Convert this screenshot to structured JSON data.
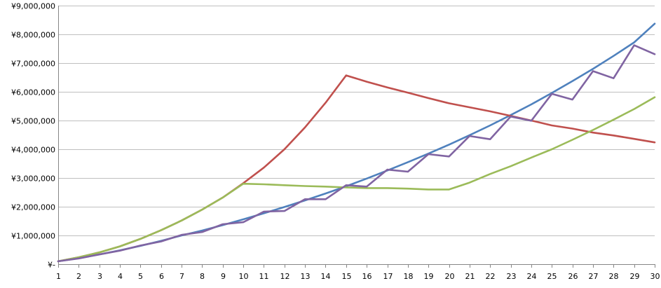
{
  "chart_data": {
    "type": "line",
    "title": "",
    "xlabel": "",
    "ylabel": "",
    "grid": true,
    "legend": "none",
    "ylim": [
      0,
      9000000
    ],
    "y_ticks": [
      {
        "value": 0,
        "label": "¥-"
      },
      {
        "value": 1000000,
        "label": "¥1,000,000"
      },
      {
        "value": 2000000,
        "label": "¥2,000,000"
      },
      {
        "value": 3000000,
        "label": "¥3,000,000"
      },
      {
        "value": 4000000,
        "label": "¥4,000,000"
      },
      {
        "value": 5000000,
        "label": "¥5,000,000"
      },
      {
        "value": 6000000,
        "label": "¥6,000,000"
      },
      {
        "value": 7000000,
        "label": "¥7,000,000"
      },
      {
        "value": 8000000,
        "label": "¥8,000,000"
      },
      {
        "value": 9000000,
        "label": "¥9,000,000"
      }
    ],
    "x": [
      "1",
      "2",
      "3",
      "4",
      "5",
      "6",
      "7",
      "8",
      "9",
      "10",
      "11",
      "12",
      "13",
      "14",
      "15",
      "16",
      "17",
      "18",
      "19",
      "20",
      "21",
      "22",
      "23",
      "24",
      "25",
      "26",
      "27",
      "28",
      "29",
      "30"
    ],
    "series": [
      {
        "color": "#4f81bd",
        "values": [
          100000,
          210000,
          340000,
          480000,
          640000,
          810000,
          1000000,
          1170000,
          1360000,
          1560000,
          1770000,
          1990000,
          2220000,
          2460000,
          2710000,
          2980000,
          3260000,
          3550000,
          3850000,
          4160000,
          4490000,
          4830000,
          5190000,
          5560000,
          5960000,
          6370000,
          6800000,
          7250000,
          7720000,
          8370000
        ]
      },
      {
        "color": "#c0504d",
        "values": [
          100000,
          240000,
          410000,
          620000,
          880000,
          1180000,
          1520000,
          1900000,
          2320000,
          2820000,
          3360000,
          4000000,
          4760000,
          5620000,
          6570000,
          6350000,
          6150000,
          5970000,
          5780000,
          5600000,
          5460000,
          5320000,
          5160000,
          5000000,
          4830000,
          4720000,
          4580000,
          4480000,
          4360000,
          4240000
        ]
      },
      {
        "color": "#9bbb59",
        "values": [
          100000,
          240000,
          410000,
          620000,
          880000,
          1180000,
          1520000,
          1900000,
          2320000,
          2800000,
          2780000,
          2750000,
          2720000,
          2700000,
          2670000,
          2650000,
          2650000,
          2630000,
          2600000,
          2600000,
          2840000,
          3140000,
          3410000,
          3710000,
          4000000,
          4330000,
          4670000,
          5030000,
          5400000,
          5810000
        ]
      },
      {
        "color": "#8064a2",
        "values": [
          100000,
          200000,
          340000,
          470000,
          650000,
          790000,
          1020000,
          1120000,
          1390000,
          1460000,
          1830000,
          1850000,
          2260000,
          2260000,
          2750000,
          2700000,
          3290000,
          3220000,
          3830000,
          3750000,
          4460000,
          4350000,
          5140000,
          4990000,
          5930000,
          5730000,
          6720000,
          6470000,
          7620000,
          7310000
        ]
      }
    ]
  }
}
